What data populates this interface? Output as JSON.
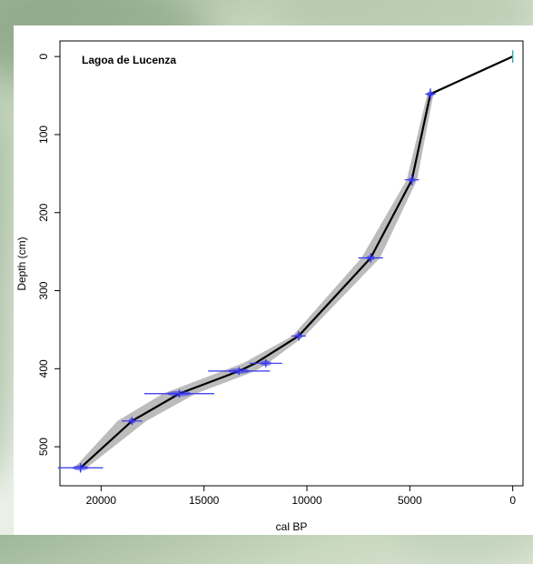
{
  "chart_data": {
    "type": "line",
    "title": "Lagoa de Lucenza",
    "xlabel": "cal BP",
    "ylabel": "Depth (cm)",
    "xlim": [
      22000,
      -500
    ],
    "ylim": [
      550,
      -20
    ],
    "x_ticks": [
      20000,
      15000,
      10000,
      5000,
      0
    ],
    "y_ticks": [
      0,
      100,
      200,
      300,
      400,
      500
    ],
    "grid": false,
    "series": [
      {
        "values": [
          {
            "x": 0,
            "y": 0
          },
          {
            "x": 4000,
            "y": 48
          },
          {
            "x": 4900,
            "y": 158
          },
          {
            "x": 6900,
            "y": 258
          },
          {
            "x": 10400,
            "y": 358
          },
          {
            "x": 12500,
            "y": 393
          },
          {
            "x": 13300,
            "y": 403
          },
          {
            "x": 16200,
            "y": 432
          },
          {
            "x": 18500,
            "y": 467
          },
          {
            "x": 21000,
            "y": 527
          }
        ]
      }
    ],
    "dates": [
      {
        "x": 0,
        "y": 0,
        "xerr": 0,
        "yerr": 8
      },
      {
        "x": 4000,
        "y": 48,
        "xerr": 250,
        "yerr": 7
      },
      {
        "x": 4900,
        "y": 158,
        "xerr": 350,
        "yerr": 7
      },
      {
        "x": 6900,
        "y": 258,
        "xerr": 600,
        "yerr": 6
      },
      {
        "x": 10400,
        "y": 358,
        "xerr": 350,
        "yerr": 6
      },
      {
        "x": 12000,
        "y": 393,
        "xerr": 800,
        "yerr": 5
      },
      {
        "x": 13300,
        "y": 403,
        "xerr": 1500,
        "yerr": 5
      },
      {
        "x": 16200,
        "y": 432,
        "xerr": 1700,
        "yerr": 5
      },
      {
        "x": 18500,
        "y": 467,
        "xerr": 500,
        "yerr": 5
      },
      {
        "x": 21000,
        "y": 527,
        "xerr": 1100,
        "yerr": 6
      }
    ],
    "envelope_halfwidth": [
      0,
      150,
      250,
      450,
      300,
      600,
      800,
      800,
      700,
      300
    ],
    "colors": {
      "line": "#000000",
      "envelope": "#a6a6a6",
      "dates": "#3333ee",
      "top_date": "#33aaaa"
    }
  }
}
